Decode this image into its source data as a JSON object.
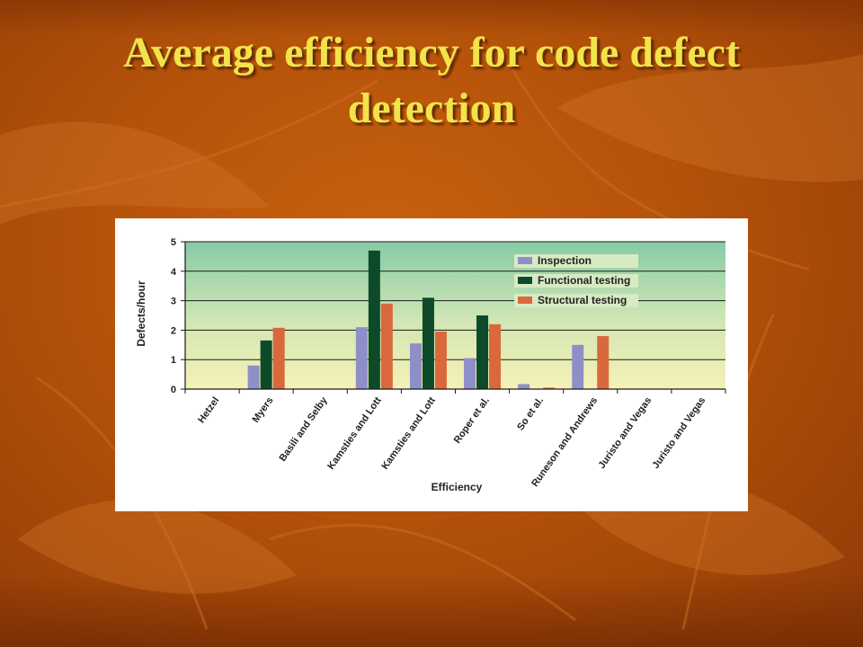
{
  "slide": {
    "title_line1": "Average efficiency for code defect",
    "title_line2": "detection"
  },
  "colors": {
    "inspection": "#8f8fc8",
    "functional": "#0d4a2a",
    "structural": "#d9693c"
  },
  "chart_data": {
    "type": "bar",
    "title": "",
    "xlabel": "Efficiency",
    "ylabel": "Defects/hour",
    "ylim": [
      0,
      5
    ],
    "yticks": [
      0,
      1,
      2,
      3,
      4,
      5
    ],
    "grid": true,
    "legend_position": "top-right",
    "categories": [
      "Hetzel",
      "Myers",
      "Basili and Selby",
      "Kamsties and Lott",
      "Kamsties and Lott",
      "Roper et al.",
      "So et al.",
      "Runeson and Andrews",
      "Juristo and Vegas",
      "Juristo and Vegas"
    ],
    "series": [
      {
        "name": "Inspection",
        "values": [
          0,
          0.8,
          0,
          2.1,
          1.55,
          1.05,
          0.17,
          1.5,
          0,
          0
        ]
      },
      {
        "name": "Functional testing",
        "values": [
          0,
          1.65,
          0,
          4.7,
          3.1,
          2.5,
          0,
          0,
          0,
          0
        ]
      },
      {
        "name": "Structural testing",
        "values": [
          0,
          2.08,
          0,
          2.9,
          1.95,
          2.2,
          0.05,
          1.8,
          0,
          0
        ]
      }
    ]
  }
}
